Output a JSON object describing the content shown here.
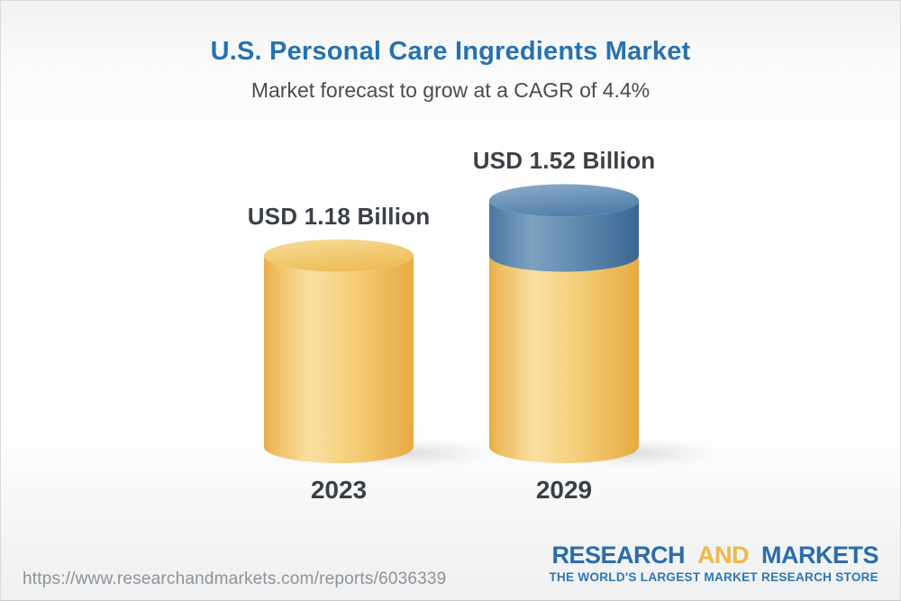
{
  "chart_data": {
    "type": "bar",
    "variant": "3d-cylinders",
    "title": "U.S. Personal Care Ingredients Market",
    "subtitle": "Market forecast to grow at a CAGR of 4.4%",
    "cagr_pct": 4.4,
    "unit": "USD Billion",
    "categories": [
      "2023",
      "2029"
    ],
    "values": [
      1.18,
      1.52
    ],
    "ylim": [
      0,
      1.7
    ],
    "legend": "none",
    "grid": false,
    "bars": [
      {
        "category": "2023",
        "value": 1.18,
        "value_label": "USD 1.18 Billion",
        "segments": [
          {
            "name": "base",
            "value": 1.18,
            "color": "gold"
          }
        ]
      },
      {
        "category": "2029",
        "value": 1.52,
        "value_label": "USD 1.52 Billion",
        "segments": [
          {
            "name": "base",
            "value": 1.18,
            "color": "gold"
          },
          {
            "name": "growth",
            "value": 0.34,
            "color": "blue"
          }
        ]
      }
    ],
    "colors": {
      "gold": "#F2C567",
      "blue": "#4C7CA8",
      "title_blue": "#2772AE",
      "label_dark": "#3C4147"
    }
  },
  "footer": {
    "url": "https://www.researchandmarkets.com/reports/6036339",
    "logo": {
      "word1": "RESEARCH",
      "word2": "AND",
      "word3": "MARKETS",
      "tagline": "THE WORLD'S LARGEST MARKET RESEARCH STORE",
      "blue": "#2B6DA9",
      "gold": "#F0B945"
    }
  }
}
